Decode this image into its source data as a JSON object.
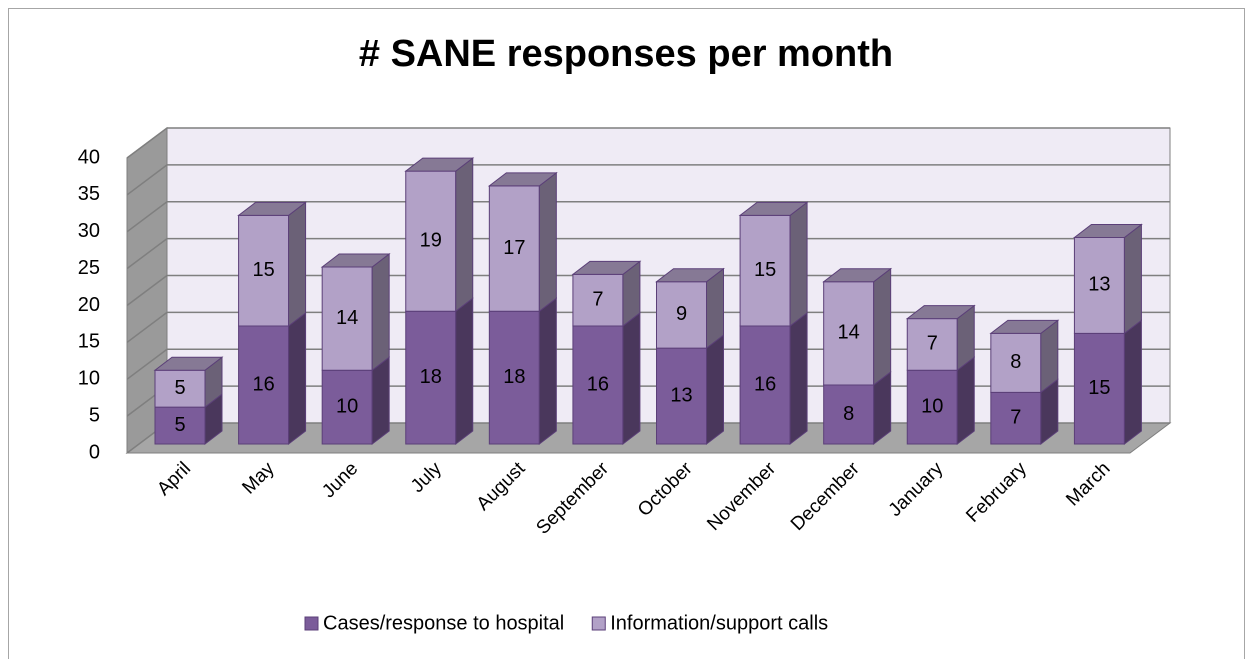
{
  "chart_data": {
    "type": "bar",
    "stacked": true,
    "title": "# SANE responses per month",
    "categories": [
      "April",
      "May",
      "June",
      "July",
      "August",
      "September",
      "October",
      "November",
      "December",
      "January",
      "February",
      "March"
    ],
    "series": [
      {
        "name": "Cases/response to hospital",
        "color": "#7b5c9a",
        "values": [
          5,
          16,
          10,
          18,
          18,
          16,
          13,
          16,
          8,
          10,
          7,
          15
        ]
      },
      {
        "name": "Information/support calls",
        "color": "#b2a1c7",
        "values": [
          5,
          15,
          14,
          19,
          17,
          7,
          9,
          15,
          14,
          7,
          8,
          13
        ]
      }
    ],
    "ylim": [
      0,
      40
    ],
    "yticks": [
      0,
      5,
      10,
      15,
      20,
      25,
      30,
      35,
      40
    ],
    "grid": true,
    "legend": "bottom"
  }
}
